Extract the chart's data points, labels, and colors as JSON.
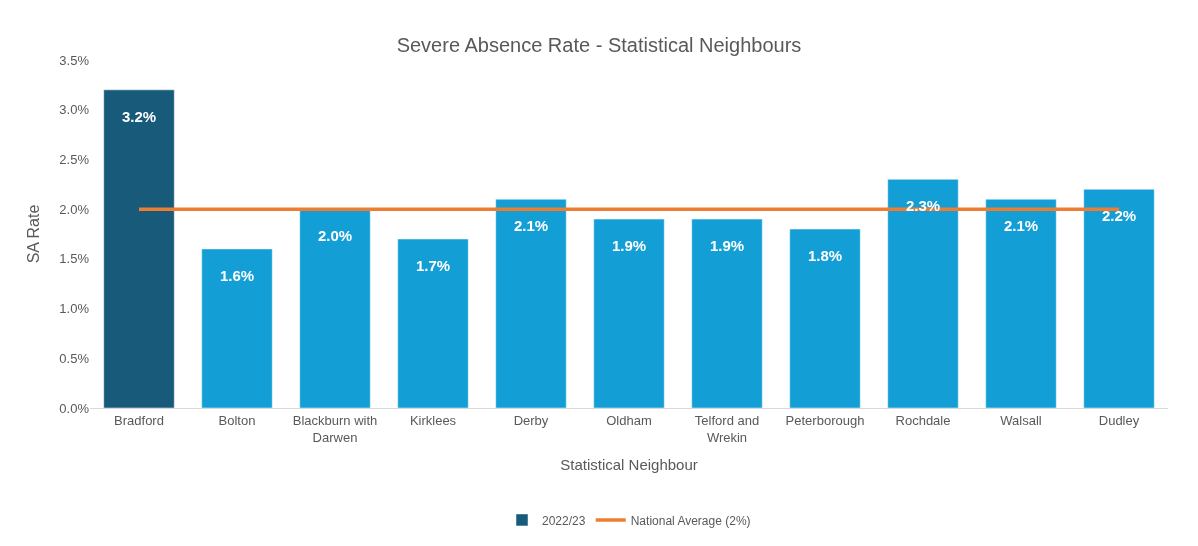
{
  "chart_data": {
    "type": "bar",
    "title": "Severe Absence Rate - Statistical Neighbours",
    "xlabel": "Statistical Neighbour",
    "ylabel": "SA Rate",
    "categories": [
      "Bradford",
      "Bolton",
      "Blackburn with Darwen",
      "Kirklees",
      "Derby",
      "Oldham",
      "Telford and Wrekin",
      "Peterborough",
      "Rochdale",
      "Walsall",
      "Dudley"
    ],
    "series": [
      {
        "name": "2022/23",
        "color": "#139fd6",
        "colors": [
          "#175a7a",
          "#139fd6",
          "#139fd6",
          "#139fd6",
          "#139fd6",
          "#139fd6",
          "#139fd6",
          "#139fd6",
          "#139fd6",
          "#139fd6",
          "#139fd6"
        ],
        "values": [
          3.2,
          1.6,
          2.0,
          1.7,
          2.1,
          1.9,
          1.9,
          1.8,
          2.3,
          2.1,
          2.2
        ],
        "value_labels": [
          "3.2%",
          "1.6%",
          "2.0%",
          "1.7%",
          "2.1%",
          "1.9%",
          "1.9%",
          "1.8%",
          "2.3%",
          "2.1%",
          "2.2%"
        ]
      },
      {
        "name": "National Average (2%)",
        "type": "line",
        "color": "#ed7d31",
        "values": [
          2,
          2,
          2,
          2,
          2,
          2,
          2,
          2,
          2,
          2,
          2
        ]
      }
    ],
    "ylim": [
      0,
      3.5
    ],
    "yticks": [
      {
        "value": 0,
        "label": "0.0%"
      },
      {
        "value": 0.5,
        "label": "0.5%"
      },
      {
        "value": 1,
        "label": "1.0%"
      },
      {
        "value": 1.5,
        "label": "1.5%"
      },
      {
        "value": 2,
        "label": "2.0%"
      },
      {
        "value": 2.5,
        "label": "2.5%"
      },
      {
        "value": 3,
        "label": "3.0%"
      },
      {
        "value": 3.5,
        "label": "3.5%"
      }
    ],
    "grid": false,
    "legend": "bottom",
    "marker": "none",
    "line_style": "solid"
  }
}
